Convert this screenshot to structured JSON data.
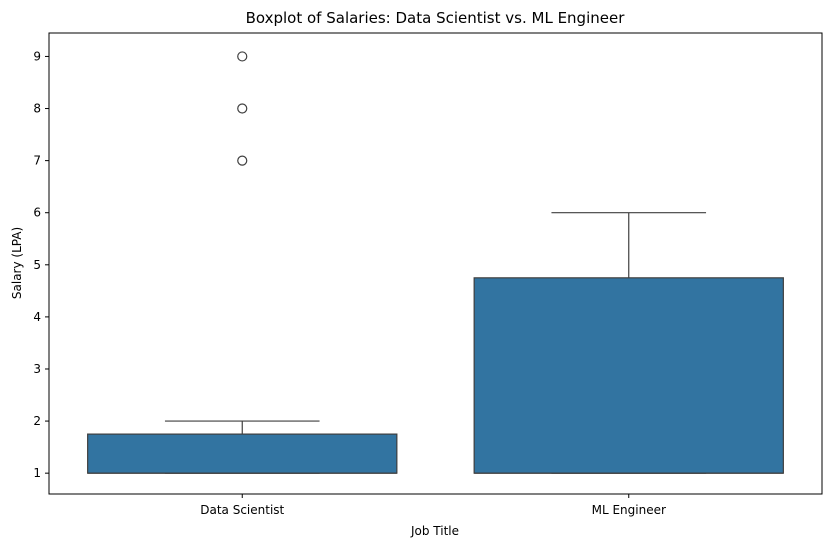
{
  "chart_data": {
    "type": "box",
    "title": "Boxplot of Salaries: Data Scientist vs. ML Engineer",
    "xlabel": "Job Title",
    "ylabel": "Salary (LPA)",
    "ylim": [
      0.6,
      9.45
    ],
    "yticks": [
      1,
      2,
      3,
      4,
      5,
      6,
      7,
      8,
      9
    ],
    "grid": false,
    "color": "#3274a1",
    "categories": [
      "Data Scientist",
      "ML Engineer"
    ],
    "boxes": [
      {
        "category": "Data Scientist",
        "whisker_low": 1,
        "q1": 1,
        "median": 1,
        "q3": 1.75,
        "whisker_high": 2,
        "outliers": [
          7,
          8,
          9
        ]
      },
      {
        "category": "ML Engineer",
        "whisker_low": 1,
        "q1": 1,
        "median": 1,
        "q3": 4.75,
        "whisker_high": 6,
        "outliers": []
      }
    ]
  }
}
